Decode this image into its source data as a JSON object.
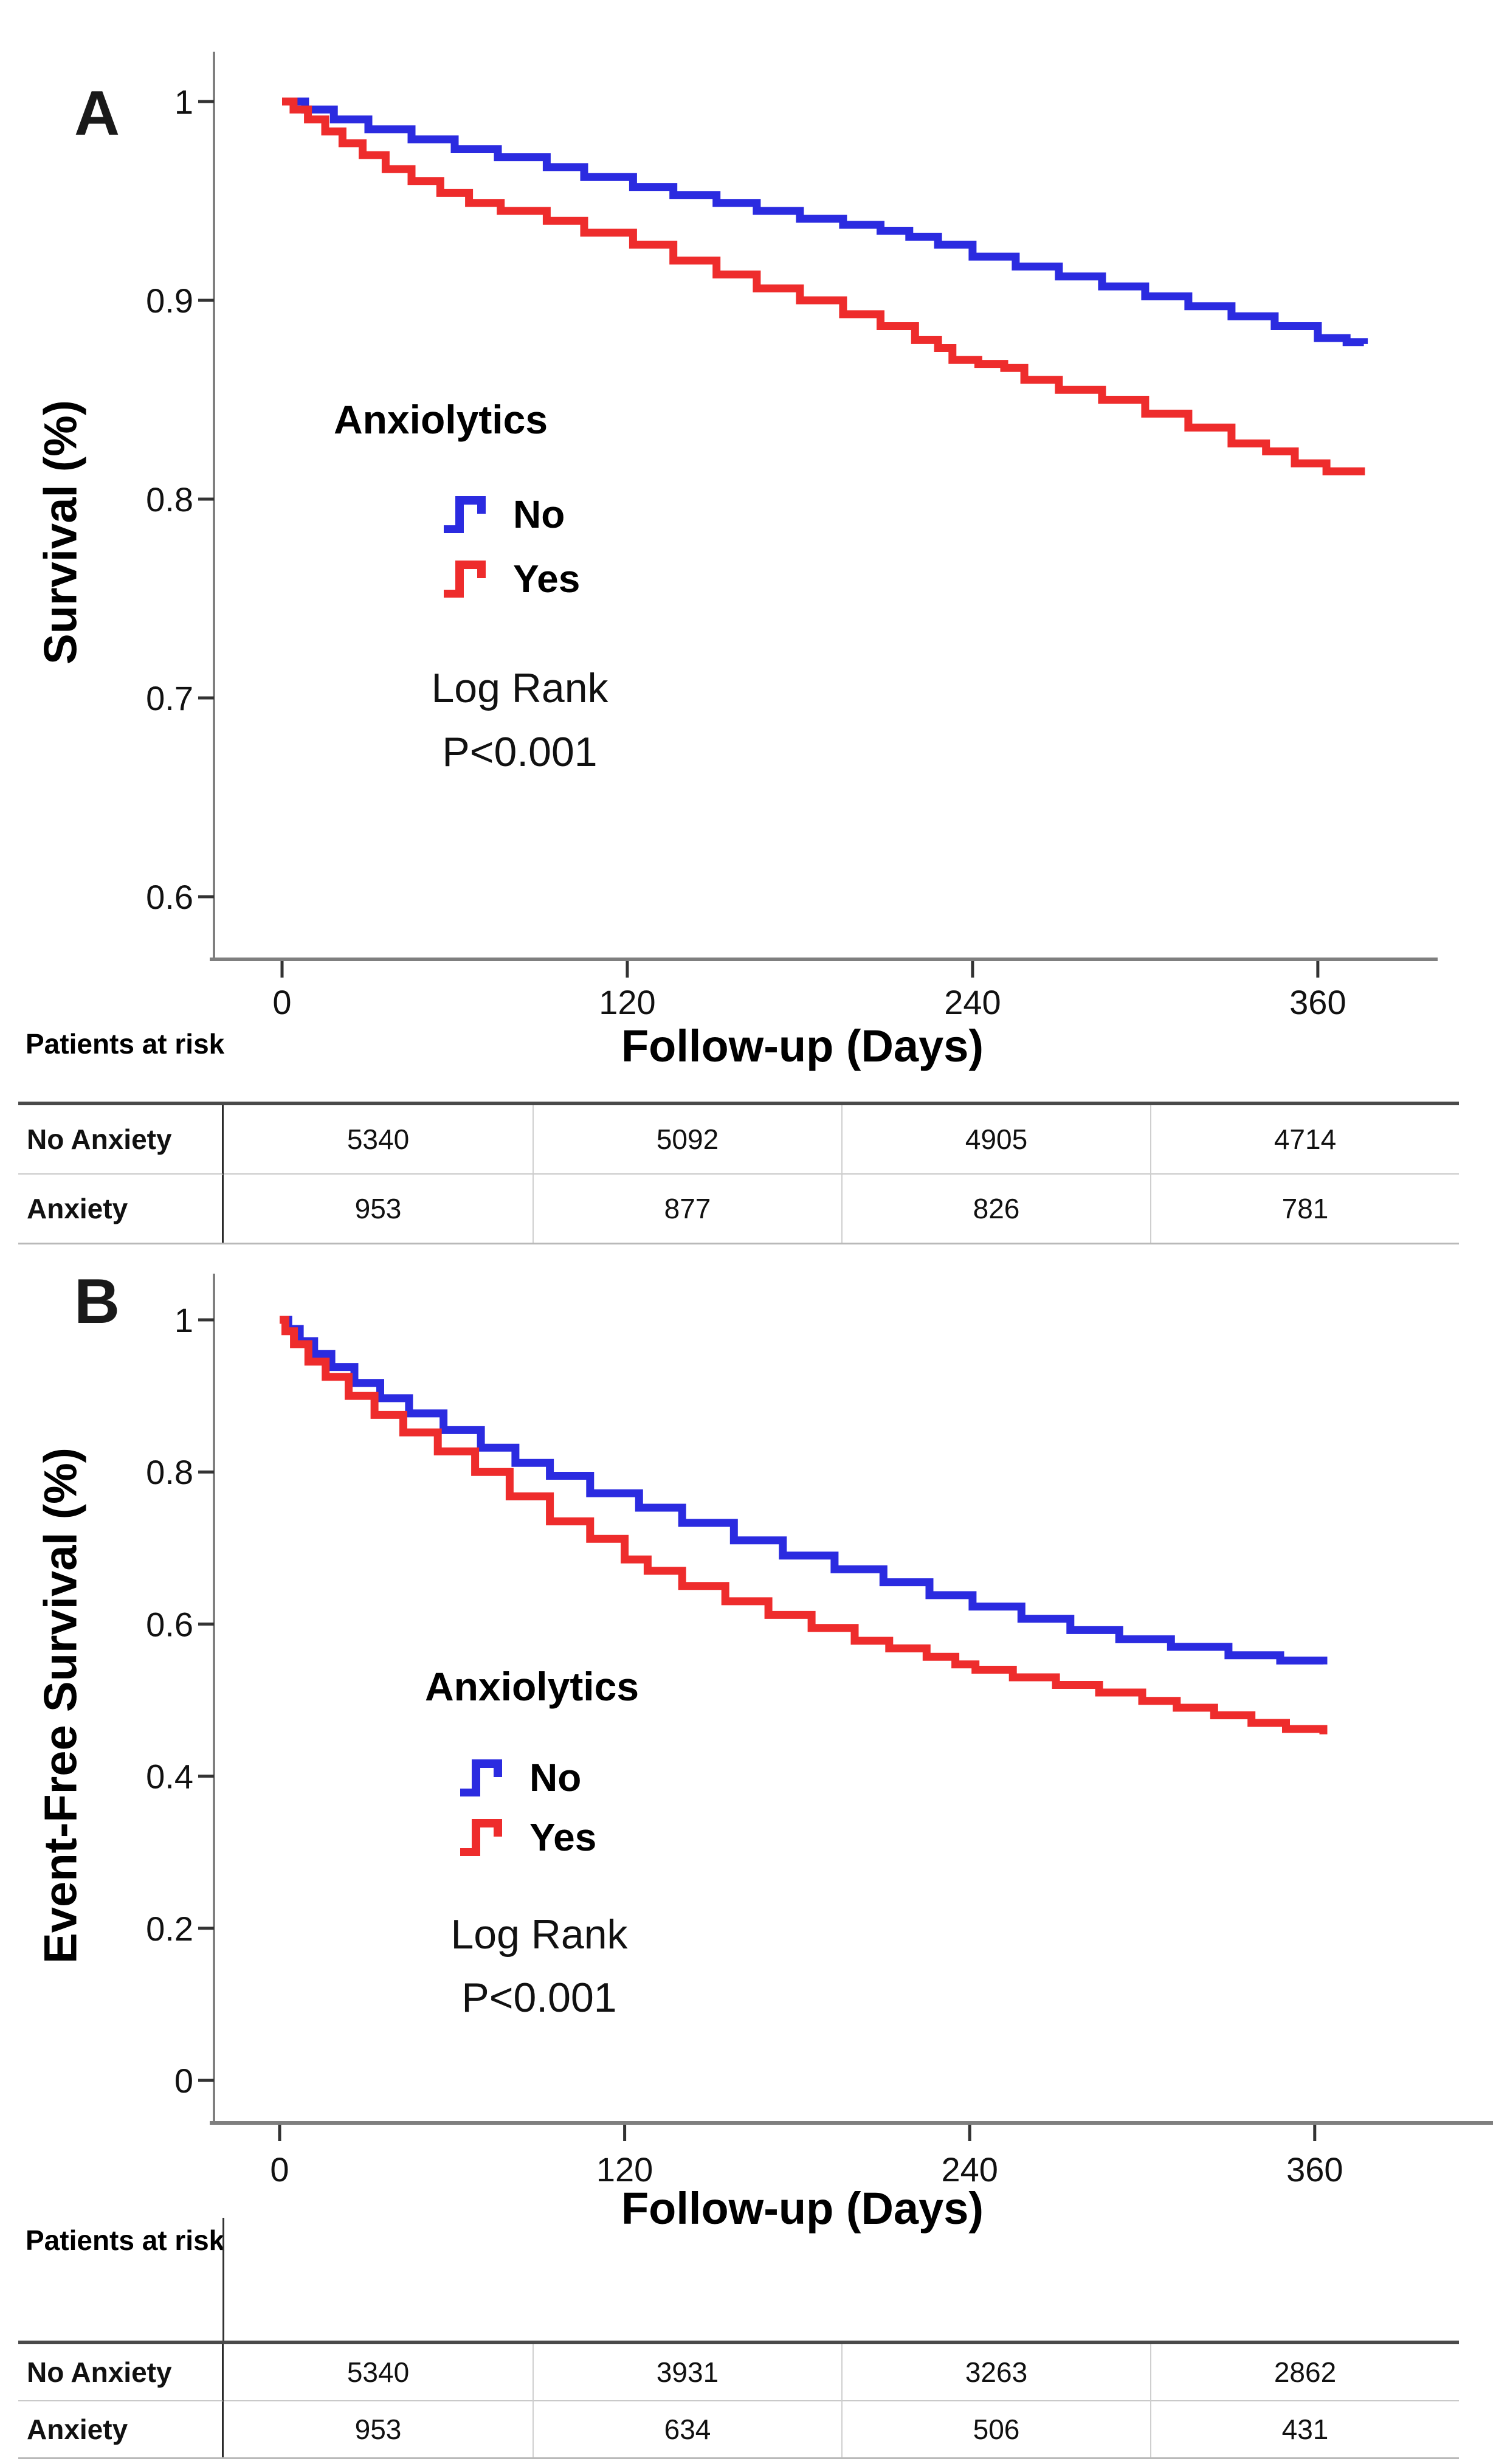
{
  "chart_data": [
    {
      "type": "step",
      "panel_label": "A",
      "title": "",
      "xlabel": "Follow-up (Days)",
      "ylabel": "Survival (%)",
      "xlim": [
        0,
        380
      ],
      "ylim": [
        0.6,
        1.0
      ],
      "xticks": [
        "0",
        "120",
        "240",
        "360"
      ],
      "xtick_values": [
        0,
        120,
        240,
        360
      ],
      "yticks": [
        "1",
        "0.9",
        "0.8",
        "0.7",
        "0.6"
      ],
      "ytick_values": [
        1.0,
        0.9,
        0.8,
        0.7,
        0.6
      ],
      "grid": "off",
      "legend_position": "inside-left",
      "legend": {
        "title": "Anxiolytics",
        "items": [
          {
            "label": "No",
            "color": "#2b2be0"
          },
          {
            "label": "Yes",
            "color": "#ee2c2c"
          }
        ],
        "stat_line1": "Log Rank",
        "stat_line2": "P<0.001"
      },
      "series": [
        {
          "name": "No",
          "color": "#2b2be0",
          "points": [
            [
              0,
              1.0
            ],
            [
              8,
              0.996
            ],
            [
              18,
              0.991
            ],
            [
              30,
              0.986
            ],
            [
              45,
              0.981
            ],
            [
              60,
              0.976
            ],
            [
              75,
              0.972
            ],
            [
              92,
              0.967
            ],
            [
              105,
              0.962
            ],
            [
              122,
              0.957
            ],
            [
              136,
              0.953
            ],
            [
              151,
              0.949
            ],
            [
              165,
              0.945
            ],
            [
              180,
              0.941
            ],
            [
              195,
              0.938
            ],
            [
              208,
              0.935
            ],
            [
              218,
              0.932
            ],
            [
              228,
              0.928
            ],
            [
              240,
              0.922
            ],
            [
              255,
              0.917
            ],
            [
              270,
              0.912
            ],
            [
              285,
              0.907
            ],
            [
              300,
              0.902
            ],
            [
              315,
              0.897
            ],
            [
              330,
              0.892
            ],
            [
              345,
              0.887
            ],
            [
              360,
              0.881
            ],
            [
              370,
              0.879
            ],
            [
              376,
              0.878
            ]
          ]
        },
        {
          "name": "Yes",
          "color": "#ee2c2c",
          "points": [
            [
              0,
              1.0
            ],
            [
              4,
              0.996
            ],
            [
              9,
              0.991
            ],
            [
              15,
              0.985
            ],
            [
              21,
              0.979
            ],
            [
              28,
              0.973
            ],
            [
              36,
              0.966
            ],
            [
              45,
              0.96
            ],
            [
              55,
              0.954
            ],
            [
              65,
              0.949
            ],
            [
              76,
              0.945
            ],
            [
              92,
              0.94
            ],
            [
              105,
              0.934
            ],
            [
              122,
              0.928
            ],
            [
              136,
              0.92
            ],
            [
              151,
              0.913
            ],
            [
              165,
              0.906
            ],
            [
              180,
              0.9
            ],
            [
              195,
              0.893
            ],
            [
              208,
              0.887
            ],
            [
              220,
              0.88
            ],
            [
              228,
              0.876
            ],
            [
              233,
              0.87
            ],
            [
              242,
              0.868
            ],
            [
              251,
              0.866
            ],
            [
              258,
              0.86
            ],
            [
              270,
              0.855
            ],
            [
              285,
              0.85
            ],
            [
              300,
              0.843
            ],
            [
              315,
              0.836
            ],
            [
              330,
              0.828
            ],
            [
              342,
              0.824
            ],
            [
              352,
              0.818
            ],
            [
              363,
              0.814
            ],
            [
              375,
              0.812
            ]
          ]
        }
      ],
      "risk_table": {
        "header": "Patients at risk",
        "time_points": [
          0,
          120,
          240,
          360
        ],
        "rows": [
          {
            "label": "No Anxiety",
            "values": [
              "5340",
              "5092",
              "4905",
              "4714"
            ]
          },
          {
            "label": "Anxiety",
            "values": [
              "953",
              "877",
              "826",
              "781"
            ]
          }
        ]
      }
    },
    {
      "type": "step",
      "panel_label": "B",
      "title": "",
      "xlabel": "Follow-up (Days)",
      "ylabel": "Event-Free Survival (%)",
      "xlim": [
        0,
        380
      ],
      "ylim": [
        0,
        1.0
      ],
      "xticks": [
        "0",
        "120",
        "240",
        "360"
      ],
      "xtick_values": [
        0,
        120,
        240,
        360
      ],
      "yticks": [
        "1",
        "0.8",
        "0.6",
        "0.4",
        "0.2",
        "0"
      ],
      "ytick_values": [
        1.0,
        0.8,
        0.6,
        0.4,
        0.2,
        0
      ],
      "grid": "off",
      "legend_position": "inside-left",
      "legend": {
        "title": "Anxiolytics",
        "items": [
          {
            "label": "No",
            "color": "#2b2be0"
          },
          {
            "label": "Yes",
            "color": "#ee2c2c"
          }
        ],
        "stat_line1": "Log Rank",
        "stat_line2": "P<0.001"
      },
      "series": [
        {
          "name": "No",
          "color": "#2b2be0",
          "points": [
            [
              0,
              1.0
            ],
            [
              3,
              0.988
            ],
            [
              7,
              0.972
            ],
            [
              12,
              0.955
            ],
            [
              18,
              0.938
            ],
            [
              26,
              0.917
            ],
            [
              35,
              0.897
            ],
            [
              45,
              0.877
            ],
            [
              57,
              0.855
            ],
            [
              70,
              0.832
            ],
            [
              82,
              0.812
            ],
            [
              94,
              0.795
            ],
            [
              108,
              0.772
            ],
            [
              125,
              0.753
            ],
            [
              140,
              0.733
            ],
            [
              158,
              0.71
            ],
            [
              175,
              0.69
            ],
            [
              193,
              0.672
            ],
            [
              210,
              0.655
            ],
            [
              226,
              0.638
            ],
            [
              241,
              0.623
            ],
            [
              258,
              0.607
            ],
            [
              275,
              0.592
            ],
            [
              292,
              0.58
            ],
            [
              310,
              0.57
            ],
            [
              330,
              0.559
            ],
            [
              348,
              0.552
            ],
            [
              363,
              0.547
            ]
          ]
        },
        {
          "name": "Yes",
          "color": "#ee2c2c",
          "points": [
            [
              0,
              1.0
            ],
            [
              2,
              0.985
            ],
            [
              5,
              0.968
            ],
            [
              10,
              0.945
            ],
            [
              16,
              0.925
            ],
            [
              24,
              0.9
            ],
            [
              33,
              0.875
            ],
            [
              43,
              0.852
            ],
            [
              55,
              0.827
            ],
            [
              68,
              0.8
            ],
            [
              80,
              0.768
            ],
            [
              94,
              0.735
            ],
            [
              108,
              0.712
            ],
            [
              120,
              0.685
            ],
            [
              128,
              0.67
            ],
            [
              140,
              0.65
            ],
            [
              155,
              0.63
            ],
            [
              170,
              0.612
            ],
            [
              185,
              0.595
            ],
            [
              200,
              0.578
            ],
            [
              212,
              0.568
            ],
            [
              225,
              0.557
            ],
            [
              235,
              0.547
            ],
            [
              242,
              0.54
            ],
            [
              255,
              0.53
            ],
            [
              270,
              0.52
            ],
            [
              285,
              0.51
            ],
            [
              300,
              0.499
            ],
            [
              312,
              0.49
            ],
            [
              325,
              0.48
            ],
            [
              338,
              0.47
            ],
            [
              350,
              0.462
            ],
            [
              363,
              0.455
            ]
          ]
        }
      ],
      "risk_table": {
        "header": "Patients at risk",
        "time_points": [
          0,
          120,
          240,
          360
        ],
        "rows": [
          {
            "label": "No Anxiety",
            "values": [
              "5340",
              "3931",
              "3263",
              "2862"
            ]
          },
          {
            "label": "Anxiety",
            "values": [
              "953",
              "634",
              "506",
              "431"
            ]
          }
        ]
      }
    }
  ]
}
